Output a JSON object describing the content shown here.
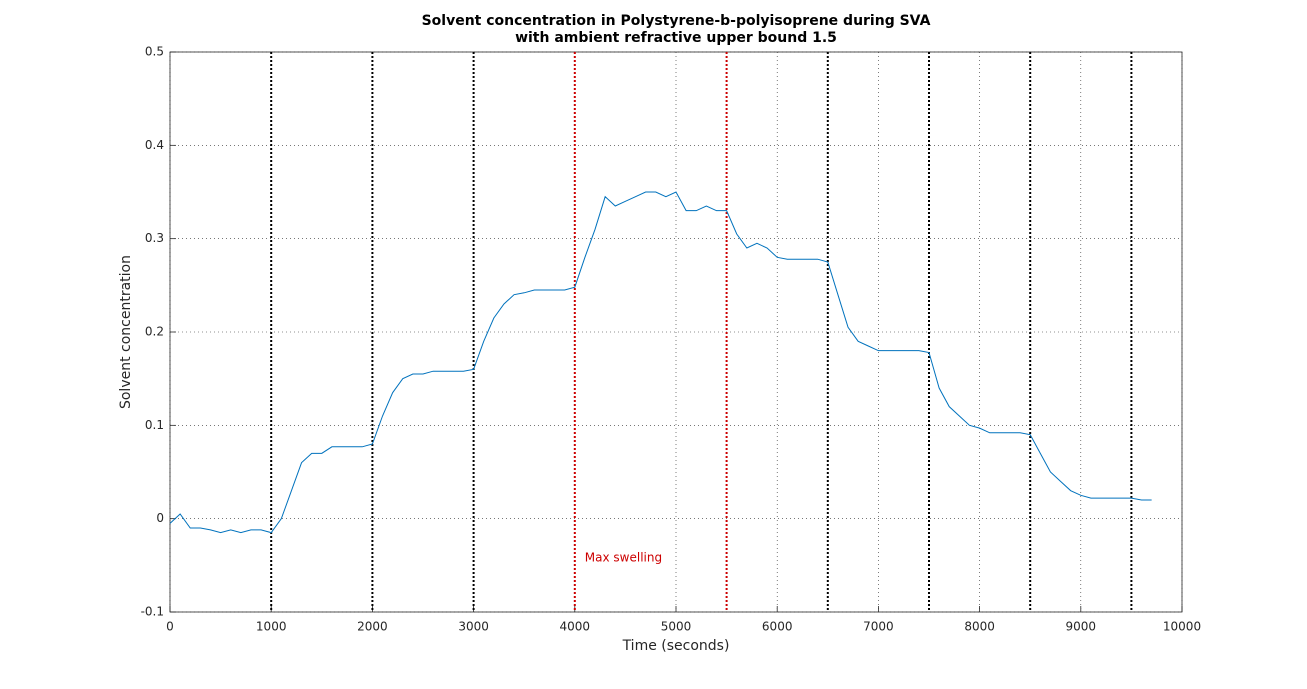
{
  "chart_data": {
    "type": "line",
    "title": "Solvent concentration in Polystyrene-b-polyisoprene during SVA",
    "subtitle": "with ambient refractive upper bound 1.5",
    "x_label": "Time (seconds)",
    "y_label": "Solvent concentration",
    "x": [
      0,
      100,
      200,
      300,
      400,
      500,
      600,
      700,
      800,
      900,
      1000,
      1100,
      1200,
      1300,
      1400,
      1500,
      1600,
      1700,
      1800,
      1900,
      2000,
      2100,
      2200,
      2300,
      2400,
      2500,
      2600,
      2700,
      2800,
      2900,
      3000,
      3100,
      3200,
      3300,
      3400,
      3500,
      3600,
      3700,
      3800,
      3900,
      4000,
      4100,
      4200,
      4300,
      4400,
      4500,
      4600,
      4700,
      4800,
      4900,
      5000,
      5100,
      5200,
      5300,
      5400,
      5500,
      5600,
      5700,
      5800,
      5900,
      6000,
      6100,
      6200,
      6300,
      6400,
      6500,
      6600,
      6700,
      6800,
      6900,
      7000,
      7100,
      7200,
      7300,
      7400,
      7500,
      7600,
      7700,
      7800,
      7900,
      8000,
      8100,
      8200,
      8300,
      8400,
      8500,
      8600,
      8700,
      8800,
      8900,
      9000,
      9100,
      9200,
      9300,
      9400,
      9500,
      9600,
      9700
    ],
    "series": [
      {
        "name": "Solvent concentration",
        "color": "#0072bd",
        "values": [
          -0.005,
          0.005,
          -0.01,
          -0.01,
          -0.012,
          -0.015,
          -0.012,
          -0.015,
          -0.012,
          -0.012,
          -0.015,
          0.0,
          0.03,
          0.06,
          0.07,
          0.07,
          0.077,
          0.077,
          0.077,
          0.077,
          0.08,
          0.11,
          0.135,
          0.15,
          0.155,
          0.155,
          0.158,
          0.158,
          0.158,
          0.158,
          0.16,
          0.19,
          0.215,
          0.23,
          0.24,
          0.242,
          0.245,
          0.245,
          0.245,
          0.245,
          0.248,
          0.28,
          0.31,
          0.345,
          0.335,
          0.34,
          0.345,
          0.35,
          0.35,
          0.345,
          0.35,
          0.33,
          0.33,
          0.335,
          0.33,
          0.33,
          0.305,
          0.29,
          0.295,
          0.29,
          0.28,
          0.278,
          0.278,
          0.278,
          0.278,
          0.275,
          0.24,
          0.205,
          0.19,
          0.185,
          0.18,
          0.18,
          0.18,
          0.18,
          0.18,
          0.178,
          0.14,
          0.12,
          0.11,
          0.1,
          0.097,
          0.092,
          0.092,
          0.092,
          0.092,
          0.09,
          0.07,
          0.05,
          0.04,
          0.03,
          0.025,
          0.022,
          0.022,
          0.022,
          0.022,
          0.022,
          0.02,
          0.02
        ]
      }
    ],
    "vlines": [
      {
        "x": 1000,
        "color": "#000000"
      },
      {
        "x": 2000,
        "color": "#000000"
      },
      {
        "x": 3000,
        "color": "#000000"
      },
      {
        "x": 4000,
        "color": "#cc0000"
      },
      {
        "x": 5500,
        "color": "#cc0000"
      },
      {
        "x": 6500,
        "color": "#000000"
      },
      {
        "x": 7500,
        "color": "#000000"
      },
      {
        "x": 8500,
        "color": "#000000"
      },
      {
        "x": 9500,
        "color": "#000000"
      }
    ],
    "annotation": "Max swelling",
    "annotation_color": "#cc0000",
    "xlim": [
      0,
      10000
    ],
    "xticks": [
      0,
      1000,
      2000,
      3000,
      4000,
      5000,
      6000,
      7000,
      8000,
      9000,
      10000
    ],
    "ylim": [
      -0.1,
      0.5
    ],
    "yticks": [
      -0.1,
      0,
      0.1,
      0.2,
      0.3,
      0.4,
      0.5
    ],
    "grid": true
  }
}
